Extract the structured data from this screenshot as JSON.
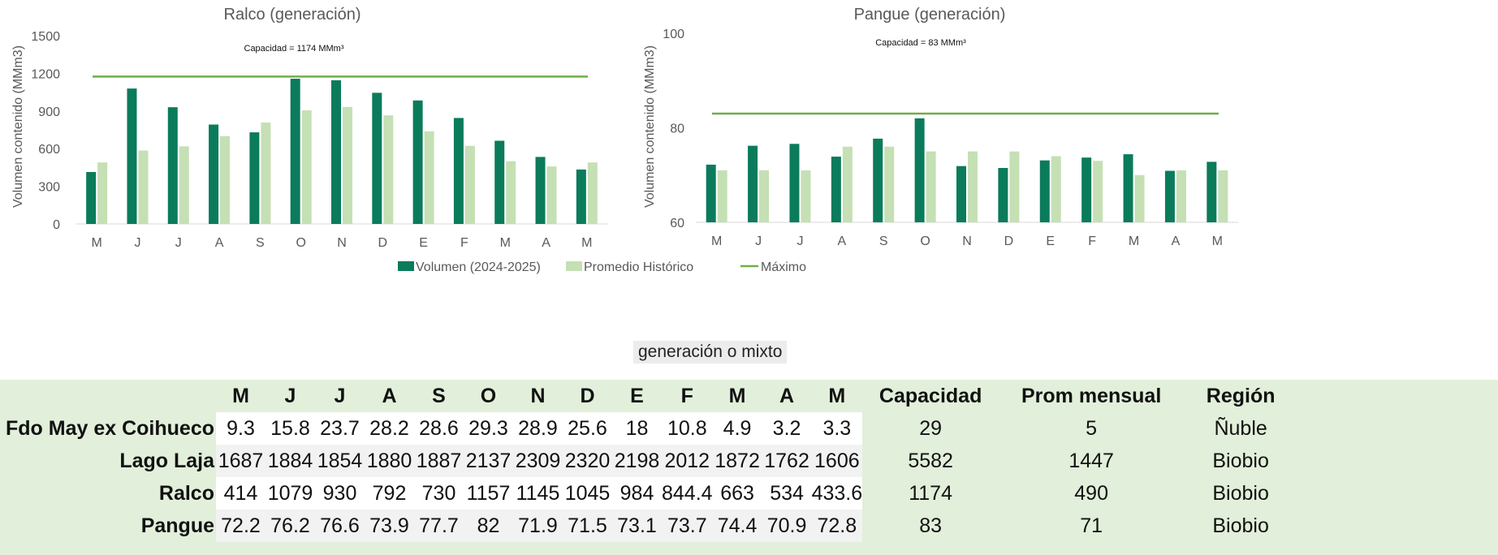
{
  "chart_data": [
    {
      "type": "bar",
      "title": "Ralco (generación)",
      "ylabel": "Volumen contenido (MMm3)",
      "ylim": [
        0,
        1500
      ],
      "yticks": [
        0,
        300,
        600,
        900,
        1200,
        1500
      ],
      "categories": [
        "M",
        "J",
        "J",
        "A",
        "S",
        "O",
        "N",
        "D",
        "E",
        "F",
        "M",
        "A",
        "M"
      ],
      "series": [
        {
          "name": "Volumen (2024-2025)",
          "values": [
            414,
            1079,
            930,
            792,
            730,
            1157,
            1145,
            1045,
            984,
            844.4,
            663,
            534,
            433.6
          ]
        },
        {
          "name": "Promedio Histórico",
          "values": [
            490,
            585,
            618,
            700,
            808,
            905,
            932,
            865,
            738,
            622,
            500,
            458,
            490
          ]
        }
      ],
      "max_line": 1174,
      "annotation": "Capacidad = 1174 MMm³",
      "grid": false
    },
    {
      "type": "bar",
      "title": "Pangue (generación)",
      "ylabel": "Volumen contenido (MMm3)",
      "ylim": [
        60,
        100
      ],
      "yticks": [
        60,
        80,
        100
      ],
      "categories": [
        "M",
        "J",
        "J",
        "A",
        "S",
        "O",
        "N",
        "D",
        "E",
        "F",
        "M",
        "A",
        "M"
      ],
      "series": [
        {
          "name": "Volumen (2024-2025)",
          "values": [
            72.2,
            76.2,
            76.6,
            73.9,
            77.7,
            82,
            71.9,
            71.5,
            73.1,
            73.7,
            74.4,
            70.9,
            72.8
          ]
        },
        {
          "name": "Promedio Histórico",
          "values": [
            71,
            71,
            71,
            76,
            76,
            75,
            75,
            75,
            74,
            73,
            70,
            71,
            71
          ]
        }
      ],
      "max_line": 83,
      "annotation": "Capacidad = 83 MMm³",
      "grid": false
    }
  ],
  "legend": {
    "placement": "bottom-center",
    "items": [
      {
        "label": "Volumen (2024-2025)",
        "kind": "bar",
        "color": "#0a7b5b"
      },
      {
        "label": "Promedio Histórico",
        "kind": "bar",
        "color": "#c5e0b4"
      },
      {
        "label": "Máximo",
        "kind": "line",
        "color": "#70ad47"
      }
    ]
  },
  "colors": {
    "volumen": "#0a7b5b",
    "promedio": "#c5e0b4",
    "maximo": "#70ad47",
    "table_bg": "#e2efda"
  },
  "subtitle": "generación o mixto",
  "table": {
    "months": [
      "M",
      "J",
      "J",
      "A",
      "S",
      "O",
      "N",
      "D",
      "E",
      "F",
      "M",
      "A",
      "M"
    ],
    "extra_headers": [
      "Capacidad",
      "Prom mensual",
      "Región"
    ],
    "rows": [
      {
        "name": "Fdo May ex Coihueco",
        "values": [
          "9.3",
          "15.8",
          "23.7",
          "28.2",
          "28.6",
          "29.3",
          "28.9",
          "25.6",
          "18",
          "10.8",
          "4.9",
          "3.2",
          "3.3"
        ],
        "capacidad": "29",
        "prom": "5",
        "region": "Ñuble"
      },
      {
        "name": "Lago Laja",
        "values": [
          "1687",
          "1884",
          "1854",
          "1880",
          "1887",
          "2137",
          "2309",
          "2320",
          "2198",
          "2012",
          "1872",
          "1762",
          "1606"
        ],
        "capacidad": "5582",
        "prom": "1447",
        "region": "Biobio"
      },
      {
        "name": "Ralco",
        "values": [
          "414",
          "1079",
          "930",
          "792",
          "730",
          "1157",
          "1145",
          "1045",
          "984",
          "844.4",
          "663",
          "534",
          "433.6"
        ],
        "capacidad": "1174",
        "prom": "490",
        "region": "Biobio"
      },
      {
        "name": "Pangue",
        "values": [
          "72.2",
          "76.2",
          "76.6",
          "73.9",
          "77.7",
          "82",
          "71.9",
          "71.5",
          "73.1",
          "73.7",
          "74.4",
          "70.9",
          "72.8"
        ],
        "capacidad": "83",
        "prom": "71",
        "region": "Biobio"
      }
    ]
  }
}
